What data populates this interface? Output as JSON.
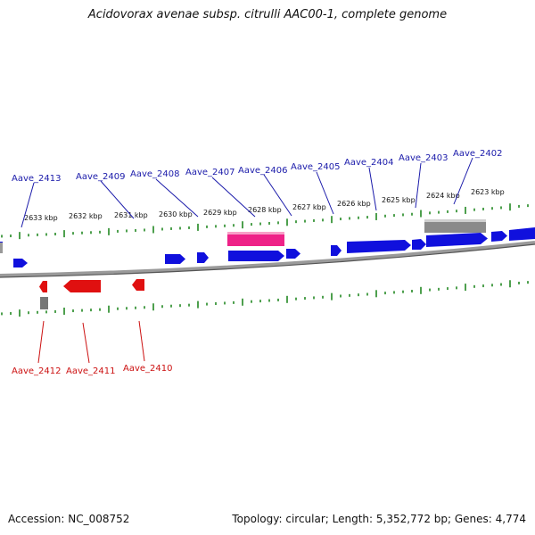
{
  "title": "Acidovorax avenae subsp. citrulli AAC00-1, complete genome",
  "footer": {
    "accession": "Accession: NC_008752",
    "stats": "Topology: circular; Length: 5,352,772 bp; Genes: 4,774"
  },
  "colors": {
    "forward_gene": "#1010dd",
    "reverse_gene": "#e01010",
    "forward_label": "#1a1aaa",
    "reverse_label": "#cc1111",
    "pseudo_gene": "#888888",
    "rna_gene": "#ee2288",
    "tick": "#228822",
    "backbone": "#777777"
  },
  "kbp_labels": [
    "2633 kbp",
    "2632 kbp",
    "2631 kbp",
    "2630 kbp",
    "2629 kbp",
    "2628 kbp",
    "2627 kbp",
    "2626 kbp",
    "2625 kbp",
    "2624 kbp",
    "2623 kbp"
  ],
  "forward_labels": [
    "Aave_2413",
    "Aave_2409",
    "Aave_2408",
    "Aave_2407",
    "Aave_2406",
    "Aave_2405",
    "Aave_2404",
    "Aave_2403",
    "Aave_2402"
  ],
  "reverse_labels": [
    "Aave_2412",
    "Aave_2411",
    "Aave_2410"
  ]
}
